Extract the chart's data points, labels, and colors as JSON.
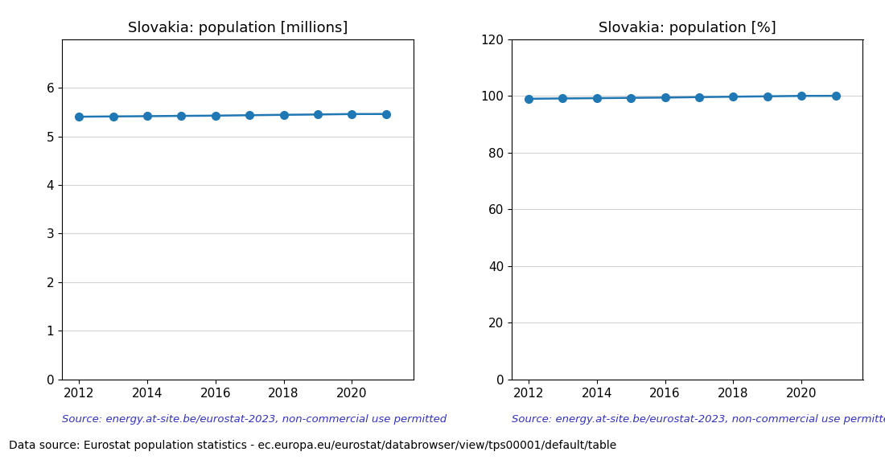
{
  "years": [
    2012,
    2013,
    2014,
    2015,
    2016,
    2017,
    2018,
    2019,
    2020,
    2021
  ],
  "population_millions": [
    5.404,
    5.41,
    5.415,
    5.421,
    5.426,
    5.435,
    5.443,
    5.45,
    5.459,
    5.46
  ],
  "population_pct": [
    98.97,
    99.08,
    99.18,
    99.29,
    99.39,
    99.55,
    99.7,
    99.83,
    99.98,
    100.0
  ],
  "title_millions": "Slovakia: population [millions]",
  "title_pct": "Slovakia: population [%]",
  "source_text": "Source: energy.at-site.be/eurostat-2023, non-commercial use permitted",
  "bottom_text": "Data source: Eurostat population statistics - ec.europa.eu/eurostat/databrowser/view/tps00001/default/table",
  "line_color": "#1f77b4",
  "source_color": "#3333bb",
  "ylim_millions": [
    0,
    7
  ],
  "ylim_pct": [
    0,
    120
  ],
  "yticks_millions": [
    0,
    1,
    2,
    3,
    4,
    5,
    6
  ],
  "yticks_pct": [
    0,
    20,
    40,
    60,
    80,
    100,
    120
  ],
  "xticks": [
    2012,
    2014,
    2016,
    2018,
    2020
  ],
  "marker": "o",
  "markersize": 7,
  "linewidth": 1.8,
  "title_fontsize": 13,
  "tick_fontsize": 11,
  "source_fontsize": 9.5,
  "bottom_fontsize": 10
}
